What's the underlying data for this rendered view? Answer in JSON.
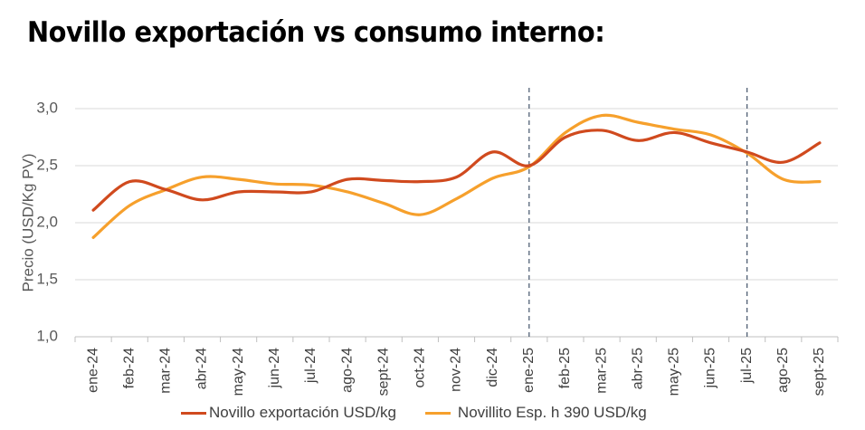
{
  "title": "Novillo exportación vs consumo interno:",
  "chart_data": {
    "type": "line",
    "title": "Novillo exportación vs consumo interno:",
    "xlabel": "",
    "ylabel": "Precio (USD/Kg PV)",
    "ylim": [
      1.0,
      3.0
    ],
    "yticks": [
      "1,0",
      "1,5",
      "2,0",
      "2,5",
      "3,0"
    ],
    "ytick_values": [
      1.0,
      1.5,
      2.0,
      2.5,
      3.0
    ],
    "grid": true,
    "smooth": true,
    "legend_position": "bottom",
    "categories": [
      "ene-24",
      "feb-24",
      "mar-24",
      "abr-24",
      "may-24",
      "jun-24",
      "jul-24",
      "ago-24",
      "sept-24",
      "oct-24",
      "nov-24",
      "dic-24",
      "ene-25",
      "feb-25",
      "mar-25",
      "abr-25",
      "may-25",
      "jun-25",
      "jul-25",
      "ago-25",
      "sept-25"
    ],
    "vertical_markers": [
      "ene-25",
      "jul-25"
    ],
    "series": [
      {
        "name": "Novillo exportación  USD/kg",
        "color": "#D04A1E",
        "values": [
          2.11,
          2.36,
          2.29,
          2.2,
          2.27,
          2.27,
          2.27,
          2.38,
          2.37,
          2.36,
          2.4,
          2.62,
          2.5,
          2.75,
          2.81,
          2.72,
          2.79,
          2.7,
          2.62,
          2.53,
          2.7
        ]
      },
      {
        "name": "Novillito Esp. h 390   USD/kg",
        "color": "#F6A02C",
        "values": [
          1.87,
          2.15,
          2.29,
          2.4,
          2.38,
          2.34,
          2.33,
          2.27,
          2.17,
          2.07,
          2.21,
          2.39,
          2.49,
          2.79,
          2.94,
          2.88,
          2.82,
          2.77,
          2.61,
          2.38,
          2.36
        ]
      }
    ]
  },
  "colors": {
    "gridline": "#D9D9D9",
    "axis": "#BFBFBF",
    "marker_line": "#44546A"
  }
}
